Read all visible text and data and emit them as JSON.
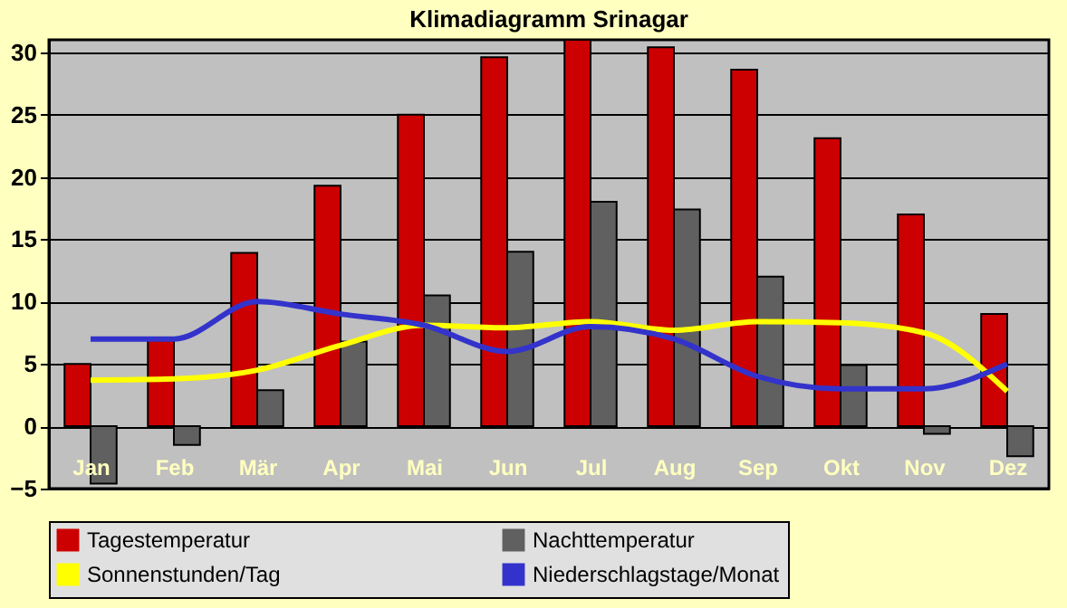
{
  "chart_data": {
    "type": "bar",
    "title": "Klimadiagramm Srinagar",
    "categories": [
      "Jan",
      "Feb",
      "Mär",
      "Apr",
      "Mai",
      "Jun",
      "Jul",
      "Aug",
      "Sep",
      "Okt",
      "Nov",
      "Dez"
    ],
    "series": [
      {
        "name": "Tagestemperatur",
        "color": "#cc0000",
        "values": [
          5,
          7,
          13.9,
          19.3,
          25,
          29.6,
          31,
          30.4,
          28.6,
          23.1,
          17,
          9
        ]
      },
      {
        "name": "Nachttemperatur",
        "color": "#606060",
        "values": [
          -4.6,
          -1.5,
          2.9,
          6.8,
          10.5,
          14,
          18,
          17.4,
          12,
          4.9,
          -0.6,
          -2.4
        ]
      },
      {
        "name": "Sonnenstunden/Tag",
        "type": "line",
        "color": "#ffff00",
        "values": [
          3.7,
          3.8,
          4.5,
          6.5,
          8.1,
          7.9,
          8.4,
          7.7,
          8.4,
          8.3,
          7.5,
          2.8
        ]
      },
      {
        "name": "Niederschlagstage/Monat",
        "type": "line",
        "color": "#3333cc",
        "values": [
          7,
          7,
          10,
          9,
          8.1,
          6,
          8,
          7,
          4,
          3,
          3,
          5
        ]
      }
    ],
    "ylim": [
      -5,
      31
    ],
    "yticks": [
      -5,
      0,
      5,
      10,
      15,
      20,
      25,
      30
    ],
    "grid": "y",
    "legend": "bottom"
  }
}
